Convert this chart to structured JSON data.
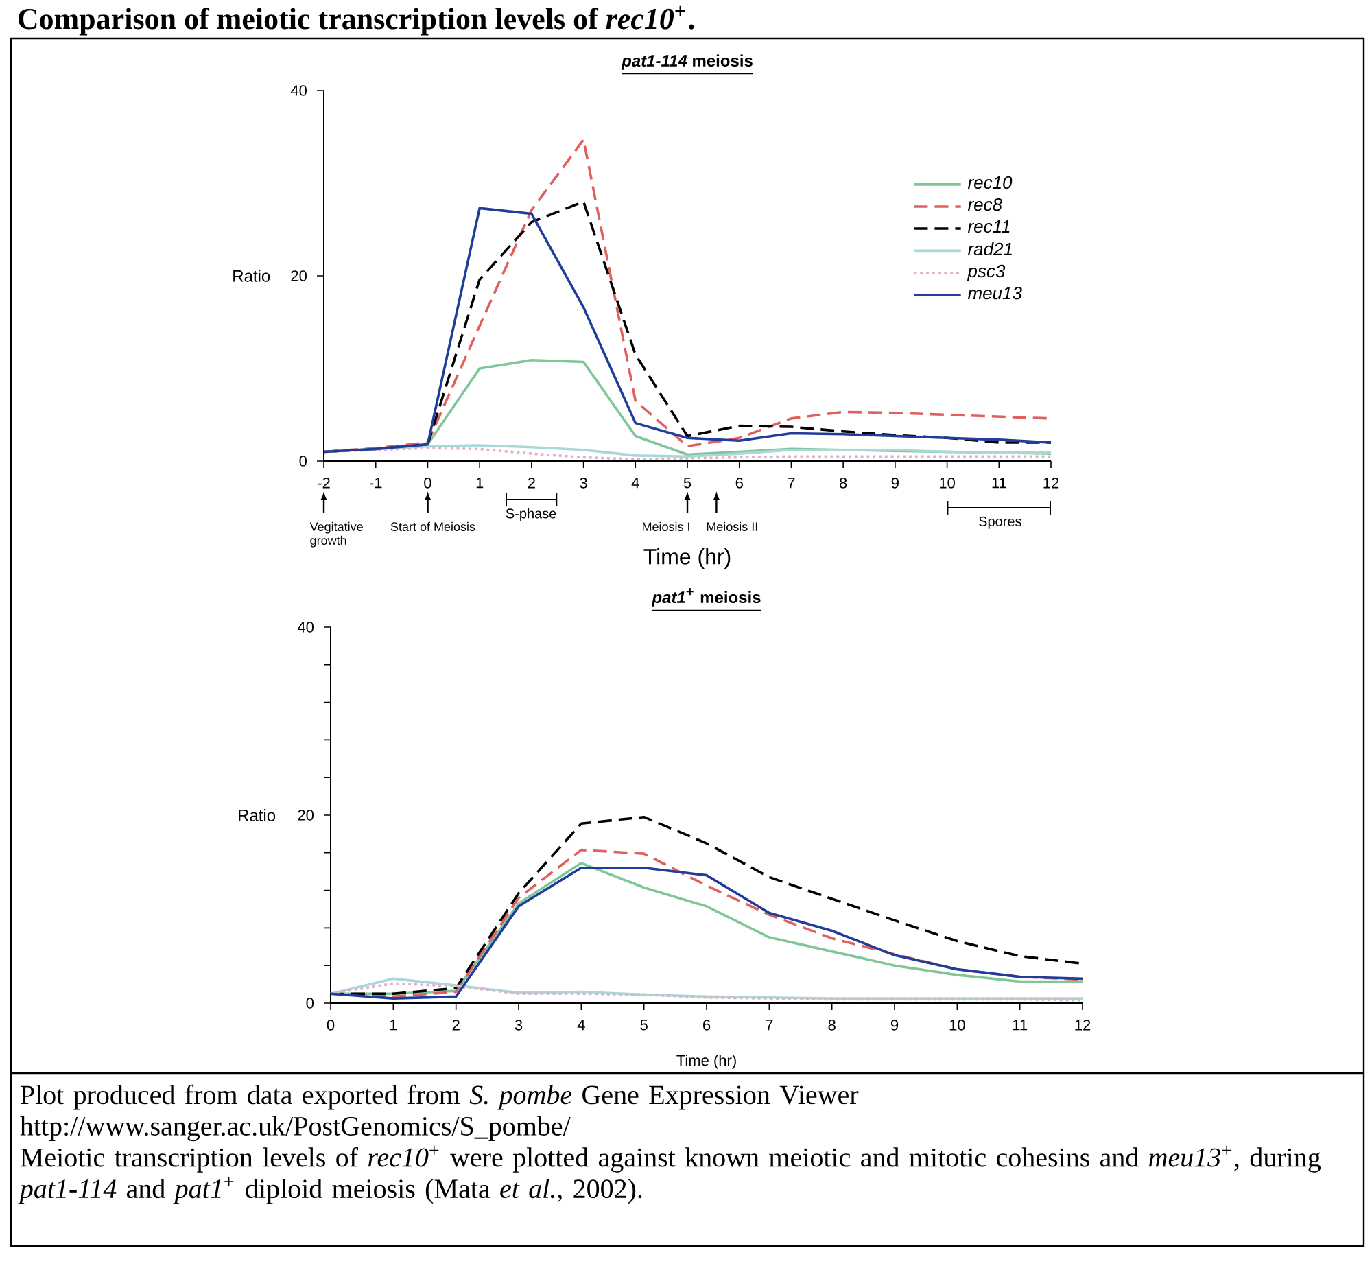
{
  "chart_data": [
    {
      "type": "line",
      "title": "Comparison of meiotic transcription levels of *rec10*$^{+}$.",
      "subtitle": "*pat1-114* meiosis",
      "xlabel": "Time (hr)",
      "ylabel": "Ratio",
      "x": [
        -2,
        -1,
        0,
        1,
        2,
        3,
        4,
        5,
        6,
        7,
        8,
        9,
        10,
        11,
        12
      ],
      "xlim": [
        -2,
        12
      ],
      "xticks": [
        -2,
        -1,
        0,
        1,
        2,
        3,
        4,
        5,
        6,
        7,
        8,
        9,
        10,
        11,
        12
      ],
      "ylim": [
        0,
        40
      ],
      "yticks": [
        0,
        20,
        40
      ],
      "grid": false,
      "legend": "top right",
      "marker": "none",
      "series": [
        {
          "name": "rec10",
          "color": "#7fc79a",
          "line_style": "solid",
          "values": [
            1,
            1.3,
            1.8,
            10.0,
            10.9,
            10.7,
            2.7,
            0.7,
            1.0,
            1.3,
            1.2,
            1.1,
            1.0,
            0.9,
            0.8
          ]
        },
        {
          "name": "rec8",
          "color": "#e06060",
          "line_style": "dashed",
          "values": [
            1,
            1.4,
            2.0,
            14.6,
            27.1,
            34.7,
            6.5,
            1.6,
            2.5,
            4.6,
            5.3,
            5.2,
            5.0,
            4.8,
            4.6
          ]
        },
        {
          "name": "rec11",
          "color": "#000000",
          "line_style": "dashed",
          "values": [
            1,
            1.3,
            1.8,
            19.6,
            25.8,
            28.0,
            11.5,
            2.7,
            3.8,
            3.7,
            3.2,
            2.8,
            2.5,
            2.0,
            2.0
          ]
        },
        {
          "name": "rad21",
          "color": "#a8d8d8",
          "line_style": "solid",
          "values": [
            1,
            1.3,
            1.6,
            1.7,
            1.5,
            1.2,
            0.6,
            0.5,
            0.8,
            1.2,
            1.2,
            1.2,
            1.0,
            0.9,
            0.9
          ]
        },
        {
          "name": "psc3",
          "color": "#e0b0c8",
          "line_style": "dotted",
          "values": [
            1,
            1.2,
            1.4,
            1.3,
            0.8,
            0.4,
            0.2,
            0.3,
            0.4,
            0.5,
            0.5,
            0.5,
            0.5,
            0.5,
            0.5
          ]
        },
        {
          "name": "meu13",
          "color": "#1f3d99",
          "line_style": "solid",
          "values": [
            1,
            1.3,
            1.8,
            27.3,
            26.7,
            16.6,
            4.1,
            2.5,
            2.2,
            3.0,
            2.9,
            2.7,
            2.5,
            2.3,
            2.0
          ]
        }
      ],
      "annotations": [
        "Vegitative growth",
        "Start of Meiosis",
        "S-phase",
        "Meiosis I",
        "Meiosis II",
        "Spores"
      ]
    },
    {
      "type": "line",
      "title": "*pat1*$^{+}$ meiosis",
      "xlabel": "Time (hr)",
      "ylabel": "Ratio",
      "x": [
        0,
        1,
        2,
        3,
        4,
        5,
        6,
        7,
        8,
        9,
        10,
        11,
        12
      ],
      "xlim": [
        0,
        12
      ],
      "xticks": [
        0,
        1,
        2,
        3,
        4,
        5,
        6,
        7,
        8,
        9,
        10,
        11,
        12
      ],
      "ylim": [
        0,
        40
      ],
      "yticks": [
        0,
        {
          "value": 4,
          "label": null
        },
        {
          "value": 8,
          "label": null
        },
        {
          "value": 12,
          "label": null
        },
        {
          "value": 16,
          "label": null
        },
        20,
        {
          "value": 24,
          "label": null
        },
        {
          "value": 28,
          "label": null
        },
        {
          "value": 32,
          "label": null
        },
        {
          "value": 36,
          "label": null
        },
        40
      ],
      "grid": false,
      "marker": "none",
      "series": [
        {
          "color": "#7fc79a",
          "line_style": "solid",
          "values": [
            1,
            1.0,
            1.3,
            10.6,
            14.9,
            12.3,
            10.3,
            7.0,
            5.5,
            4.0,
            3.0,
            2.3,
            2.3
          ]
        },
        {
          "color": "#e06060",
          "line_style": "dashed",
          "values": [
            1,
            0.7,
            1.2,
            11.2,
            16.3,
            15.9,
            12.5,
            9.4,
            6.9,
            5.2,
            3.6,
            2.8,
            2.5
          ]
        },
        {
          "color": "#000000",
          "line_style": "dashed",
          "values": [
            1,
            1.0,
            1.6,
            11.7,
            19.1,
            19.8,
            17.0,
            13.4,
            11.1,
            8.8,
            6.6,
            5.0,
            4.2
          ]
        },
        {
          "color": "#a8d8d8",
          "line_style": "solid",
          "values": [
            1,
            2.6,
            1.9,
            1.1,
            1.2,
            0.9,
            0.7,
            0.6,
            0.5,
            0.5,
            0.5,
            0.5,
            0.5
          ]
        },
        {
          "color": "#e0b0c8",
          "line_style": "dotted",
          "values": [
            1,
            2.1,
            1.8,
            1.0,
            1.0,
            0.9,
            0.6,
            0.5,
            0.4,
            0.4,
            0.4,
            0.4,
            0.3
          ]
        },
        {
          "color": "#1f3d99",
          "line_style": "solid",
          "values": [
            1,
            0.5,
            0.7,
            10.3,
            14.4,
            14.4,
            13.6,
            9.6,
            7.7,
            5.1,
            3.6,
            2.8,
            2.6
          ]
        }
      ],
      "annotations": [
        "Plot produced from data exported from *S. pombe*  Gene Expression Viewer",
        "http://www.sanger.ac.uk/PostGenomics/S_pombe/",
        "Meiotic transcription levels of *rec10*$^{+}$ were plotted against known meiotic and mitotic cohesins and *meu13*$^{+}$, during *pat1-114* and *pat1*$^{+}$ diploid meiosis (Mata *et al.*, 2002)."
      ]
    }
  ]
}
